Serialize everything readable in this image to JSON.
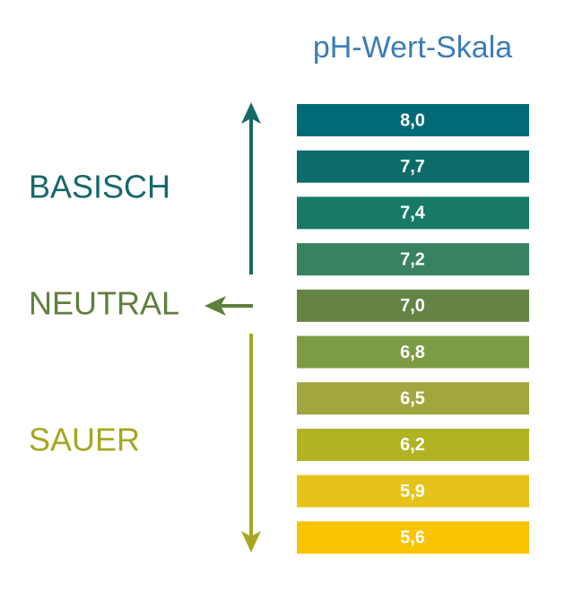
{
  "title": "pH-Wert-Skala",
  "zones": [
    {
      "label": "BASISCH",
      "color": "#17686a"
    },
    {
      "label": "NEUTRAL",
      "color": "#5f7f3c"
    },
    {
      "label": "SAUER",
      "color": "#a5a81f"
    }
  ],
  "scale": [
    {
      "label": "8,0",
      "color": "#006b78"
    },
    {
      "label": "7,7",
      "color": "#0b6c6b"
    },
    {
      "label": "7,4",
      "color": "#177a67"
    },
    {
      "label": "7,2",
      "color": "#38825f"
    },
    {
      "label": "7,0",
      "color": "#658344"
    },
    {
      "label": "6,8",
      "color": "#7d9b45"
    },
    {
      "label": "6,5",
      "color": "#a1a63e"
    },
    {
      "label": "6,2",
      "color": "#b1b323"
    },
    {
      "label": "5,9",
      "color": "#e5c31a"
    },
    {
      "label": "5,6",
      "color": "#f8c300"
    }
  ]
}
